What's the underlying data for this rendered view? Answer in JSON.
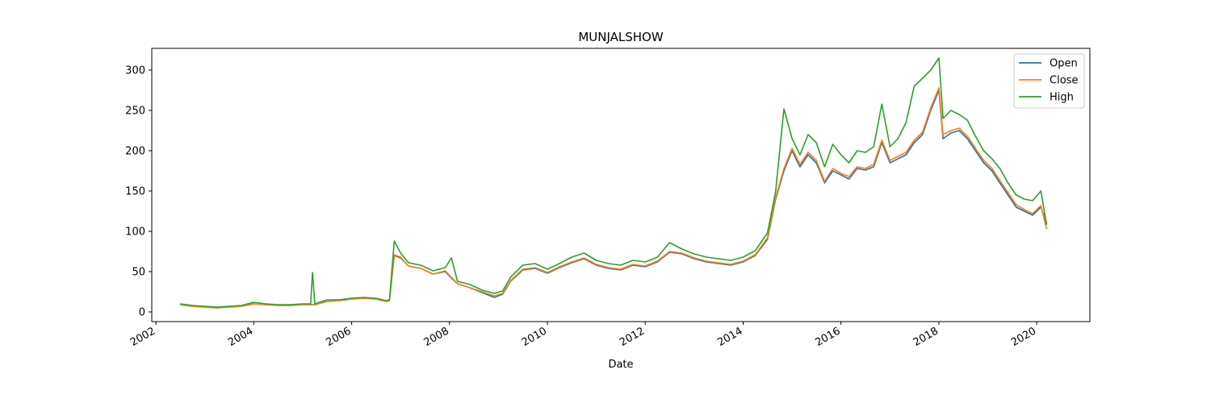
{
  "chart_data": {
    "type": "line",
    "title": "MUNJALSHOW",
    "xlabel": "Date",
    "ylabel": "",
    "x_axis": {
      "kind": "date",
      "min": "2001-12-01",
      "max": "2021-02-01"
    },
    "ylim": [
      -12,
      327
    ],
    "xticks": [
      "2002",
      "2004",
      "2006",
      "2008",
      "2010",
      "2012",
      "2014",
      "2016",
      "2018",
      "2020"
    ],
    "yticks": [
      0,
      50,
      100,
      150,
      200,
      250,
      300
    ],
    "grid": false,
    "legend": {
      "placement": "top-right",
      "entries": [
        "Open",
        "Close",
        "High"
      ]
    },
    "x": [
      "2002-07-01",
      "2002-10-01",
      "2003-01-01",
      "2003-04-01",
      "2003-07-01",
      "2003-10-01",
      "2004-01-01",
      "2004-04-01",
      "2004-07-01",
      "2004-10-01",
      "2005-01-01",
      "2005-03-01",
      "2005-03-15",
      "2005-04-01",
      "2005-07-01",
      "2005-10-01",
      "2006-01-01",
      "2006-04-01",
      "2006-07-01",
      "2006-09-15",
      "2006-10-10",
      "2006-11-15",
      "2007-01-01",
      "2007-03-01",
      "2007-06-01",
      "2007-09-01",
      "2007-12-01",
      "2008-01-15",
      "2008-03-01",
      "2008-06-01",
      "2008-09-01",
      "2008-12-01",
      "2009-02-01",
      "2009-04-01",
      "2009-07-01",
      "2009-10-01",
      "2010-01-01",
      "2010-04-01",
      "2010-07-01",
      "2010-10-01",
      "2011-01-01",
      "2011-04-01",
      "2011-07-01",
      "2011-10-01",
      "2012-01-01",
      "2012-04-01",
      "2012-07-01",
      "2012-10-01",
      "2013-01-01",
      "2013-04-01",
      "2013-07-01",
      "2013-10-01",
      "2014-01-01",
      "2014-04-01",
      "2014-07-01",
      "2014-09-01",
      "2014-11-01",
      "2015-01-01",
      "2015-03-01",
      "2015-05-01",
      "2015-07-01",
      "2015-09-01",
      "2015-11-01",
      "2016-01-01",
      "2016-03-01",
      "2016-05-01",
      "2016-07-01",
      "2016-09-01",
      "2016-11-01",
      "2017-01-01",
      "2017-03-01",
      "2017-05-01",
      "2017-07-01",
      "2017-09-01",
      "2017-11-01",
      "2018-01-01",
      "2018-02-01",
      "2018-04-01",
      "2018-06-01",
      "2018-08-01",
      "2018-10-01",
      "2018-12-01",
      "2019-02-01",
      "2019-04-01",
      "2019-06-01",
      "2019-08-01",
      "2019-10-01",
      "2019-12-01",
      "2020-02-01",
      "2020-03-15"
    ],
    "series": [
      {
        "name": "Open",
        "color": "#1f77b4",
        "values": [
          9,
          7,
          6,
          5,
          6,
          7,
          10,
          9,
          8,
          8,
          9,
          9,
          9,
          9,
          13,
          14,
          16,
          17,
          16,
          13,
          14,
          70,
          67,
          57,
          54,
          47,
          50,
          42,
          35,
          30,
          24,
          18,
          22,
          38,
          52,
          54,
          48,
          55,
          61,
          66,
          58,
          54,
          52,
          58,
          56,
          62,
          74,
          72,
          66,
          62,
          60,
          58,
          62,
          70,
          90,
          140,
          175,
          200,
          180,
          195,
          185,
          160,
          175,
          170,
          165,
          178,
          176,
          180,
          210,
          185,
          190,
          195,
          210,
          220,
          250,
          275,
          215,
          222,
          225,
          215,
          200,
          185,
          175,
          160,
          145,
          130,
          125,
          120,
          130,
          110
        ]
      },
      {
        "name": "Close",
        "color": "#ff7f0e",
        "values": [
          9,
          7,
          6,
          5,
          6,
          7,
          10,
          9,
          8,
          8,
          9,
          9,
          9,
          9,
          13,
          14,
          16,
          17,
          16,
          13,
          14,
          71,
          68,
          57,
          54,
          47,
          51,
          43,
          35,
          30,
          25,
          20,
          23,
          39,
          53,
          55,
          49,
          56,
          62,
          67,
          59,
          55,
          53,
          59,
          57,
          63,
          75,
          73,
          67,
          63,
          61,
          59,
          63,
          71,
          92,
          142,
          178,
          203,
          183,
          198,
          188,
          162,
          178,
          172,
          168,
          180,
          178,
          183,
          213,
          188,
          193,
          198,
          213,
          223,
          253,
          278,
          220,
          225,
          228,
          218,
          203,
          188,
          178,
          163,
          148,
          133,
          127,
          122,
          132,
          103
        ]
      },
      {
        "name": "High",
        "color": "#2ca02c",
        "values": [
          10,
          8,
          7,
          6,
          7,
          8,
          12,
          10,
          9,
          9,
          10,
          10,
          49,
          10,
          15,
          15,
          17,
          18,
          17,
          14,
          15,
          88,
          73,
          61,
          58,
          51,
          55,
          67,
          38,
          34,
          27,
          23,
          26,
          43,
          58,
          60,
          53,
          60,
          68,
          73,
          64,
          60,
          58,
          64,
          62,
          68,
          86,
          78,
          72,
          68,
          66,
          64,
          68,
          76,
          98,
          150,
          252,
          215,
          195,
          220,
          210,
          180,
          208,
          195,
          185,
          200,
          198,
          205,
          258,
          205,
          215,
          235,
          280,
          290,
          300,
          315,
          240,
          250,
          245,
          238,
          218,
          200,
          190,
          178,
          160,
          145,
          140,
          138,
          150,
          108
        ]
      }
    ]
  }
}
